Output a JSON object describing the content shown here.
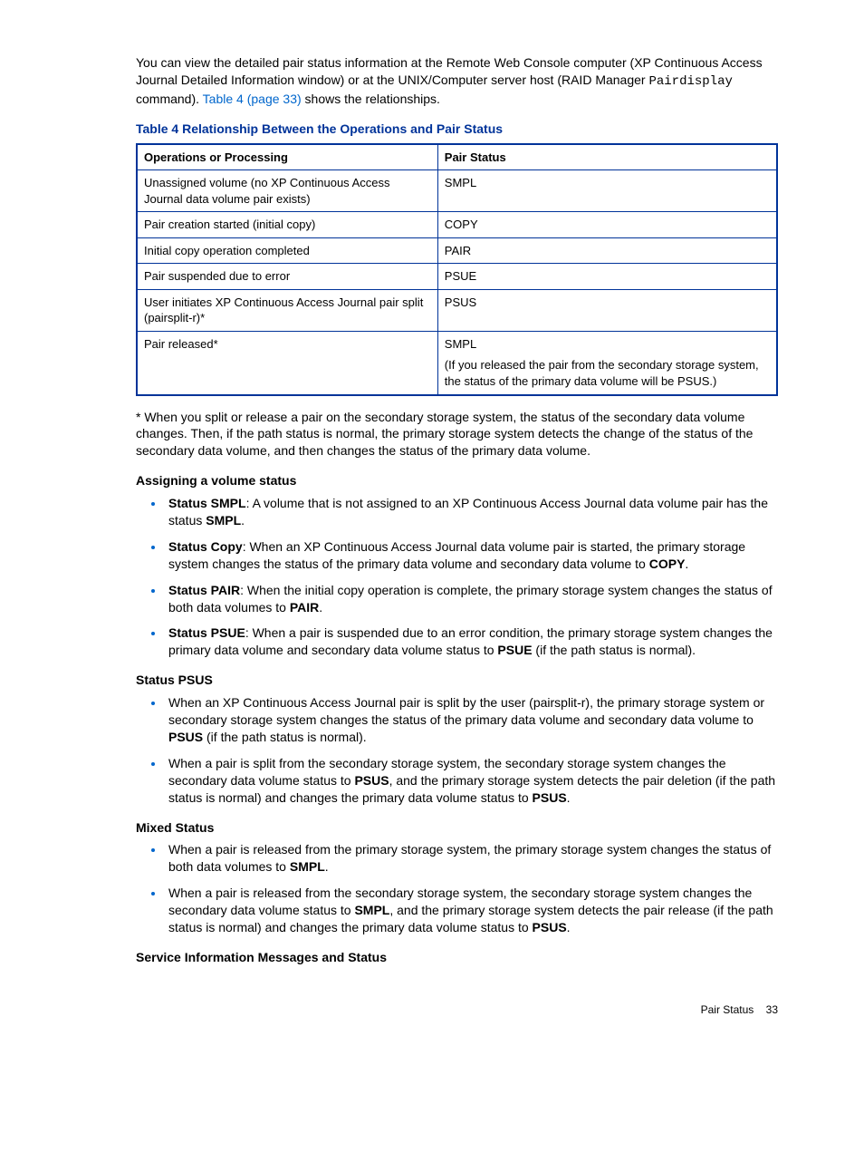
{
  "intro": {
    "p1a": "You can view the detailed pair status information at the Remote Web Console computer (XP Continuous Access Journal Detailed Information window) or at the UNIX/Computer server host (RAID Manager ",
    "p1code": "Pairdisplay",
    "p1b": " command). ",
    "p1link": "Table 4 (page 33)",
    "p1c": " shows the relationships."
  },
  "table": {
    "title": "Table 4 Relationship Between the Operations and Pair Status",
    "head1": "Operations or Processing",
    "head2": "Pair Status",
    "rows": [
      {
        "op": "Unassigned volume (no XP Continuous Access Journal data volume pair exists)",
        "status": "SMPL"
      },
      {
        "op": "Pair creation started (initial copy)",
        "status": "COPY"
      },
      {
        "op": "Initial copy operation completed",
        "status": "PAIR"
      },
      {
        "op": "Pair suspended due to error",
        "status": "PSUE"
      },
      {
        "op": "User initiates XP Continuous Access Journal pair split (pairsplit-r)*",
        "status": "PSUS"
      }
    ],
    "last": {
      "op": "Pair released*",
      "status": "SMPL",
      "note": "(If you released the pair from the secondary storage system, the status of the primary data volume will be PSUS.)"
    }
  },
  "footnote": "* When you split or release a pair on the secondary storage system, the status of the secondary data volume changes. Then, if the path status is normal, the primary storage system detects the change of the status of the secondary data volume, and then changes the status of the primary data volume.",
  "assign": {
    "heading": "Assigning a volume status",
    "items": [
      {
        "b": "Status SMPL",
        "t1": ": A volume that is not assigned to an XP Continuous Access Journal data volume pair has the status ",
        "b2": "SMPL",
        "t2": "."
      },
      {
        "b": "Status Copy",
        "t1": ": When an XP Continuous Access Journal data volume pair is started, the primary storage system changes the status of the primary data volume and secondary data volume to ",
        "b2": "COPY",
        "t2": "."
      },
      {
        "b": "Status PAIR",
        "t1": ": When the initial copy operation is complete, the primary storage system changes the status of both data volumes to ",
        "b2": "PAIR",
        "t2": "."
      },
      {
        "b": "Status PSUE",
        "t1": ": When a pair is suspended due to an error condition, the primary storage system changes the primary data volume and secondary data volume status to ",
        "b2": "PSUE",
        "t2": " (if the path status is normal)."
      }
    ]
  },
  "psus": {
    "heading": "Status PSUS",
    "i1a": "When an XP Continuous Access Journal pair is split by the user (pairsplit-r), the primary storage system or secondary storage system changes the status of the primary data volume and secondary data volume to ",
    "i1b": "PSUS",
    "i1c": " (if the path status is normal).",
    "i2a": "When a pair is split from the secondary storage system, the secondary storage system changes the secondary data volume status to ",
    "i2b": "PSUS",
    "i2c": ", and the primary storage system detects the pair deletion (if the path status is normal) and changes the primary data volume status to ",
    "i2d": "PSUS",
    "i2e": "."
  },
  "mixed": {
    "heading": "Mixed Status",
    "i1a": "When a pair is released from the primary storage system, the primary storage system changes the status of both data volumes to ",
    "i1b": "SMPL",
    "i1c": ".",
    "i2a": "When a pair is released from the secondary storage system, the secondary storage system changes the secondary data volume status to ",
    "i2b": "SMPL",
    "i2c": ", and the primary storage system detects the pair release (if the path status is normal) and changes the primary data volume status to ",
    "i2d": "PSUS",
    "i2e": "."
  },
  "service_heading": "Service Information Messages and Status",
  "footer": {
    "label": "Pair Status",
    "page": "33"
  }
}
